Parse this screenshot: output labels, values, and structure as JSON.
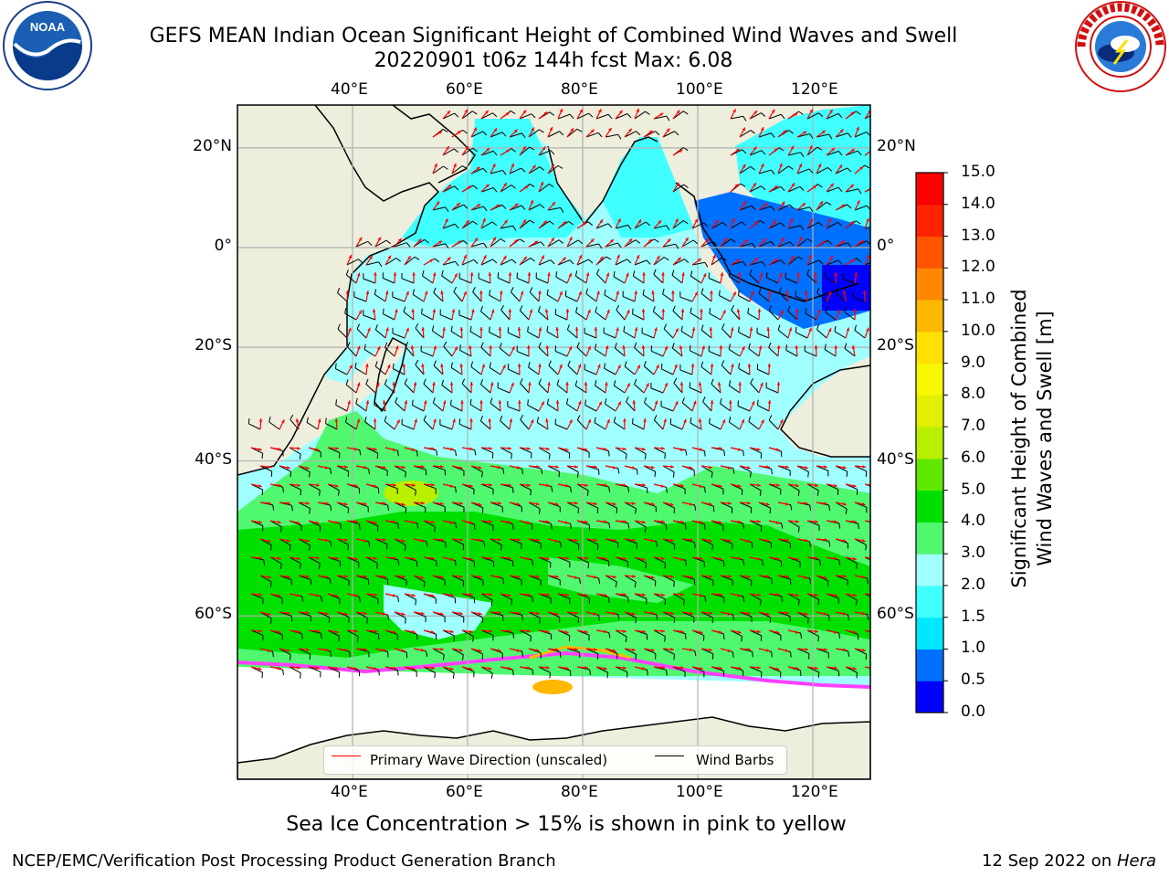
{
  "title_line1": "GEFS MEAN Indian Ocean Significant Height of Combined Wind Waves and Swell",
  "title_line2": "20220901 t06z 144h fcst   Max: 6.08",
  "caption": "Sea Ice Concentration > 15% is shown in pink to yellow",
  "footer_left": "NCEP/EMC/Verification Post Processing Product Generation Branch",
  "footer_right_date": "12 Sep 2022 on ",
  "footer_right_host": "Hera",
  "logos": {
    "noaa_text": "NOAA",
    "noaa_ring": "NATIONAL OCEANIC AND ATMOSPHERIC ADMINISTRATION · U.S. DEPARTMENT OF COMMERCE",
    "nws_ring": "NATIONAL WEATHER SERVICE"
  },
  "map": {
    "lon_range": [
      20,
      130
    ],
    "lat_range": [
      -73,
      28
    ],
    "lon_ticks": [
      40,
      60,
      80,
      100,
      120
    ],
    "lat_ticks": [
      20,
      0,
      -20,
      -40,
      -60
    ],
    "lon_labels": [
      "40°E",
      "60°E",
      "80°E",
      "100°E",
      "120°E"
    ],
    "lat_labels": [
      "20°N",
      "0°",
      "20°S",
      "40°S",
      "60°S"
    ],
    "land_color": "#eeeedd",
    "grid_color": "#b0b0b0",
    "legend": {
      "wave_label": "Primary Wave Direction (unscaled)",
      "wave_color": "#ff0000",
      "wind_label": "Wind Barbs",
      "wind_color": "#000000"
    }
  },
  "colorbar": {
    "label_line1": "Significant Height of Combined",
    "label_line2": "Wind Waves and Swell [m]",
    "unit": "m",
    "min": 0,
    "max": 15,
    "tick_labels": [
      "0.0",
      "0.5",
      "1.0",
      "1.5",
      "2.0",
      "3.0",
      "4.0",
      "5.0",
      "6.0",
      "7.0",
      "8.0",
      "9.0",
      "10.0",
      "11.0",
      "12.0",
      "13.0",
      "14.0",
      "15.0"
    ],
    "colors": [
      "#0000ff",
      "#0070ff",
      "#00e8ff",
      "#40ffff",
      "#a0ffff",
      "#50f870",
      "#00e000",
      "#60e800",
      "#b8f000",
      "#e0f000",
      "#f8f800",
      "#ffe000",
      "#ffb800",
      "#ff8800",
      "#ff5500",
      "#ff2200",
      "#ff0000"
    ]
  },
  "wave_height_zones": [
    {
      "name": "tropical band",
      "height_m": "2.0-3.0",
      "color": "#a0ffff"
    },
    {
      "name": "southern ocean storm belt",
      "height_m": "4.0-5.0",
      "color": "#00e000"
    },
    {
      "name": "southern ocean swell",
      "height_m": "3.0-4.0",
      "color": "#50f870"
    },
    {
      "name": "maximum",
      "height_m": "6.08",
      "color": "#b8f000"
    },
    {
      "name": "indonesian seas",
      "height_m": "0.0-1.0",
      "color": "#0070ff"
    }
  ]
}
